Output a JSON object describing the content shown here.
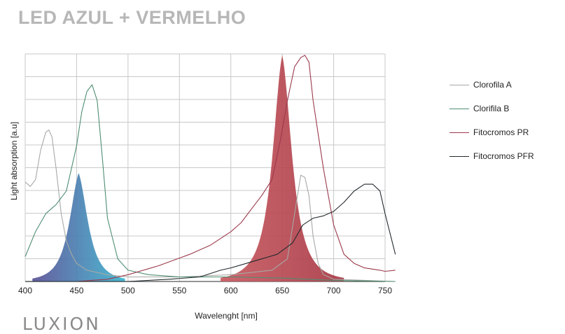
{
  "title": "LED AZUL + VERMELHO",
  "brand": {
    "logo_text": "LUXION"
  },
  "chart_data": {
    "type": "line",
    "xlabel": "Wavelenght [nm]",
    "ylabel": "Light absorption [a.u]",
    "xlim": [
      400,
      760
    ],
    "ylim": [
      0,
      1
    ],
    "grid": true,
    "x_ticks": [
      400,
      450,
      500,
      550,
      600,
      650,
      700,
      750
    ],
    "legend_position": "right",
    "series": [
      {
        "name": "Clorofila A",
        "color": "#a6aaa4",
        "points": [
          [
            400,
            0.44
          ],
          [
            405,
            0.42
          ],
          [
            410,
            0.45
          ],
          [
            415,
            0.58
          ],
          [
            420,
            0.66
          ],
          [
            423,
            0.67
          ],
          [
            426,
            0.64
          ],
          [
            430,
            0.5
          ],
          [
            435,
            0.3
          ],
          [
            440,
            0.18
          ],
          [
            445,
            0.12
          ],
          [
            450,
            0.08
          ],
          [
            460,
            0.05
          ],
          [
            480,
            0.03
          ],
          [
            500,
            0.02
          ],
          [
            550,
            0.02
          ],
          [
            600,
            0.03
          ],
          [
            640,
            0.05
          ],
          [
            655,
            0.1
          ],
          [
            662,
            0.3
          ],
          [
            668,
            0.47
          ],
          [
            672,
            0.46
          ],
          [
            676,
            0.38
          ],
          [
            680,
            0.2
          ],
          [
            685,
            0.08
          ],
          [
            690,
            0.03
          ],
          [
            700,
            0.01
          ],
          [
            760,
            0.0
          ]
        ]
      },
      {
        "name": "Clorifila B",
        "color": "#4f8e72",
        "points": [
          [
            400,
            0.11
          ],
          [
            410,
            0.22
          ],
          [
            420,
            0.3
          ],
          [
            430,
            0.34
          ],
          [
            440,
            0.4
          ],
          [
            445,
            0.5
          ],
          [
            450,
            0.6
          ],
          [
            455,
            0.75
          ],
          [
            460,
            0.84
          ],
          [
            465,
            0.87
          ],
          [
            470,
            0.8
          ],
          [
            475,
            0.55
          ],
          [
            480,
            0.28
          ],
          [
            490,
            0.1
          ],
          [
            500,
            0.05
          ],
          [
            520,
            0.03
          ],
          [
            550,
            0.02
          ],
          [
            600,
            0.02
          ],
          [
            650,
            0.015
          ],
          [
            700,
            0.005
          ],
          [
            760,
            0.0
          ]
        ]
      },
      {
        "name": "Fitocromos PR",
        "color": "#9b3a4c",
        "points": [
          [
            400,
            0.0
          ],
          [
            450,
            0.0
          ],
          [
            480,
            0.01
          ],
          [
            500,
            0.03
          ],
          [
            530,
            0.07
          ],
          [
            560,
            0.12
          ],
          [
            580,
            0.16
          ],
          [
            600,
            0.22
          ],
          [
            610,
            0.26
          ],
          [
            620,
            0.32
          ],
          [
            630,
            0.38
          ],
          [
            640,
            0.45
          ],
          [
            648,
            0.62
          ],
          [
            655,
            0.8
          ],
          [
            662,
            0.95
          ],
          [
            668,
            0.99
          ],
          [
            672,
            1.0
          ],
          [
            676,
            0.97
          ],
          [
            680,
            0.8
          ],
          [
            690,
            0.5
          ],
          [
            700,
            0.25
          ],
          [
            710,
            0.12
          ],
          [
            720,
            0.08
          ],
          [
            730,
            0.06
          ],
          [
            745,
            0.05
          ],
          [
            750,
            0.045
          ],
          [
            760,
            0.05
          ]
        ]
      },
      {
        "name": "Fitocromos PFR",
        "color": "#222a2e",
        "points": [
          [
            400,
            0.0
          ],
          [
            500,
            0.0
          ],
          [
            540,
            0.01
          ],
          [
            570,
            0.02
          ],
          [
            590,
            0.05
          ],
          [
            600,
            0.06
          ],
          [
            615,
            0.08
          ],
          [
            630,
            0.1
          ],
          [
            645,
            0.12
          ],
          [
            660,
            0.17
          ],
          [
            670,
            0.25
          ],
          [
            680,
            0.28
          ],
          [
            690,
            0.29
          ],
          [
            700,
            0.31
          ],
          [
            710,
            0.35
          ],
          [
            720,
            0.4
          ],
          [
            730,
            0.43
          ],
          [
            738,
            0.43
          ],
          [
            745,
            0.4
          ],
          [
            750,
            0.3
          ],
          [
            760,
            0.12
          ]
        ]
      }
    ],
    "led_peaks": [
      {
        "peak_nm": 452,
        "peak_value": 0.48,
        "color_from": "#5a5095",
        "color_to": "#3cb4d0"
      },
      {
        "peak_nm": 650,
        "peak_value": 1.0,
        "color_from": "#c75a60",
        "color_to": "#a83845"
      }
    ]
  }
}
